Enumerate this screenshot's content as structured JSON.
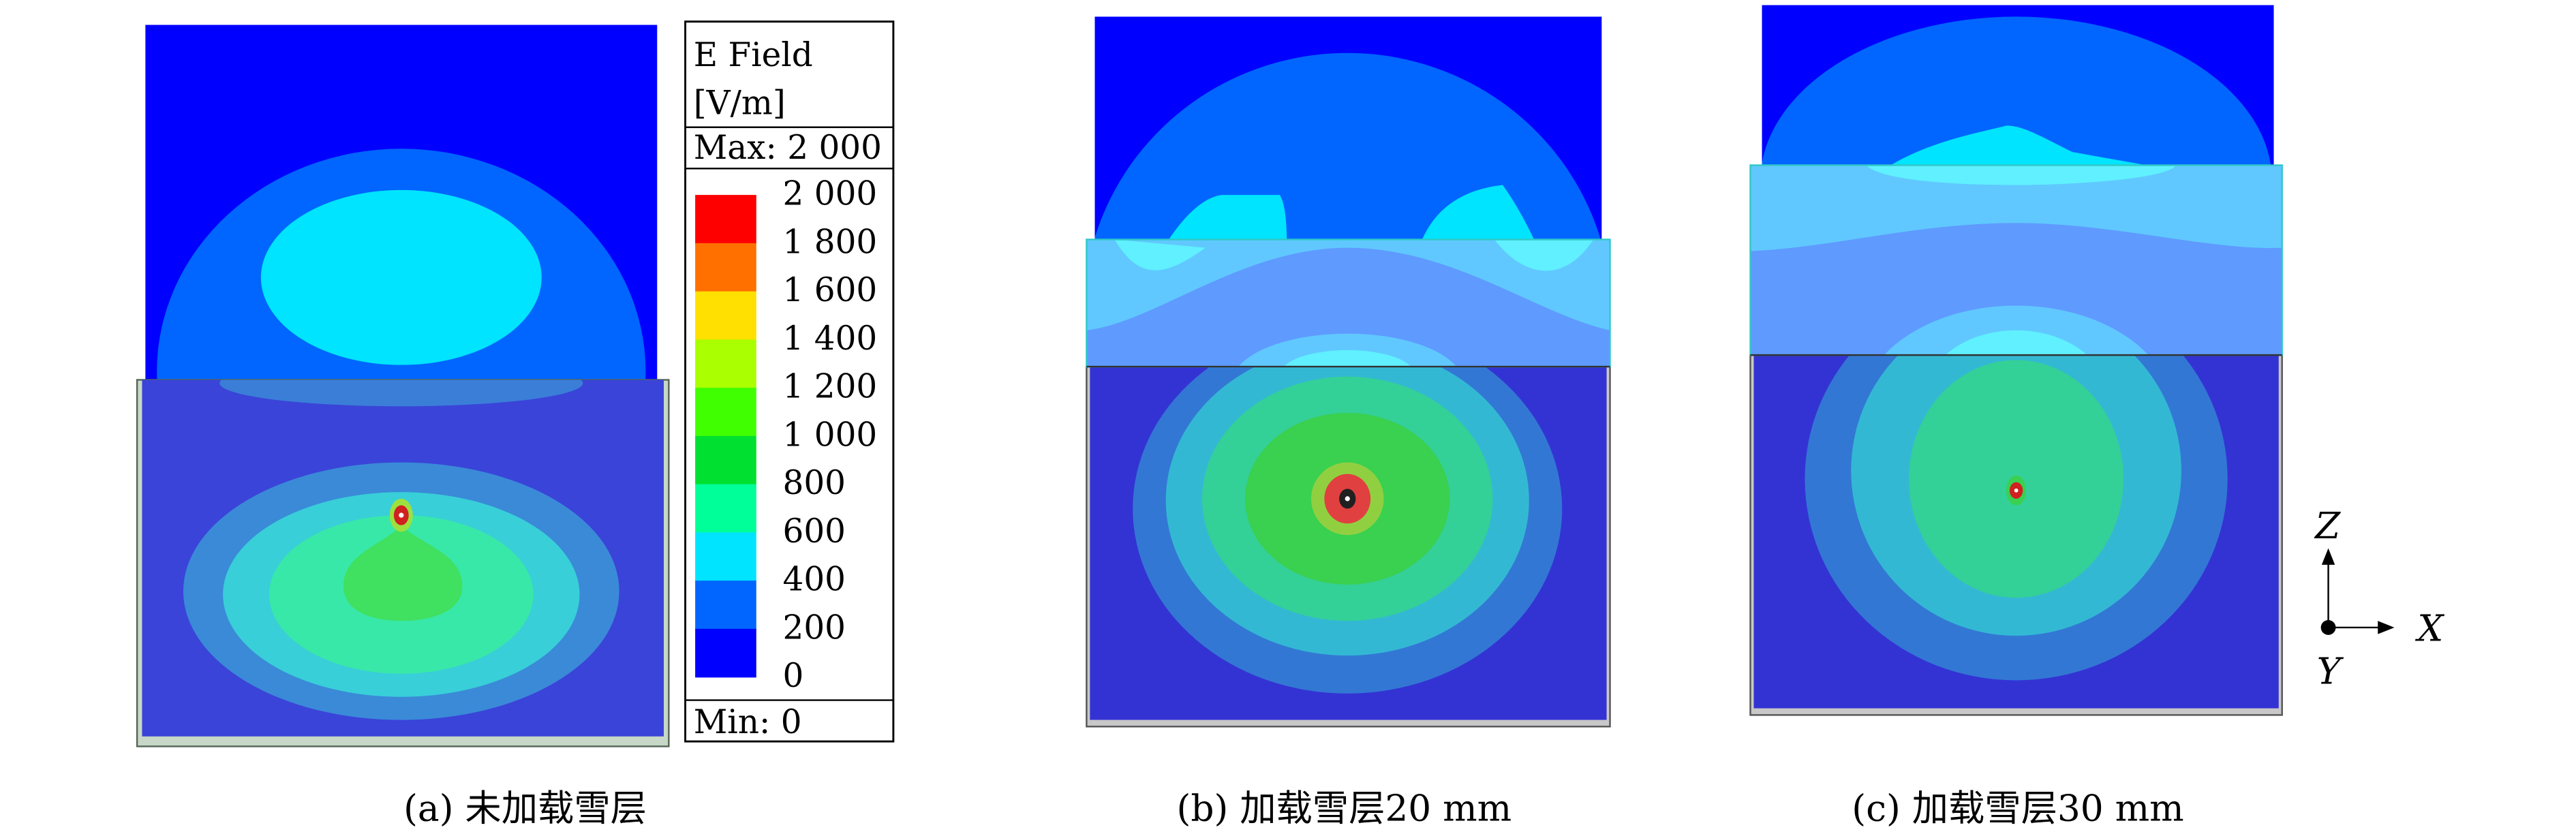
{
  "legend": {
    "title_line1": "E Field",
    "title_line2": "[V/m]",
    "max_label": "Max: 2 000",
    "min_label": "Min: 0",
    "ticks": [
      "2 000",
      "1 800",
      "1 600",
      "1 400",
      "1 200",
      "1 000",
      "800",
      "600",
      "400",
      "200",
      "0"
    ],
    "colors": [
      "#ff0000",
      "#ff7000",
      "#ffe000",
      "#aaff00",
      "#40ff00",
      "#00e030",
      "#00ff99",
      "#00e4ff",
      "#0066ff",
      "#0000ff"
    ]
  },
  "panels": [
    {
      "caption": "(a) 未加载雪层"
    },
    {
      "caption": "(b) 加载雪层20 mm"
    },
    {
      "caption": "(c) 加载雪层30 mm"
    }
  ],
  "axes": {
    "z": "Z",
    "x": "X",
    "y": "Y"
  }
}
